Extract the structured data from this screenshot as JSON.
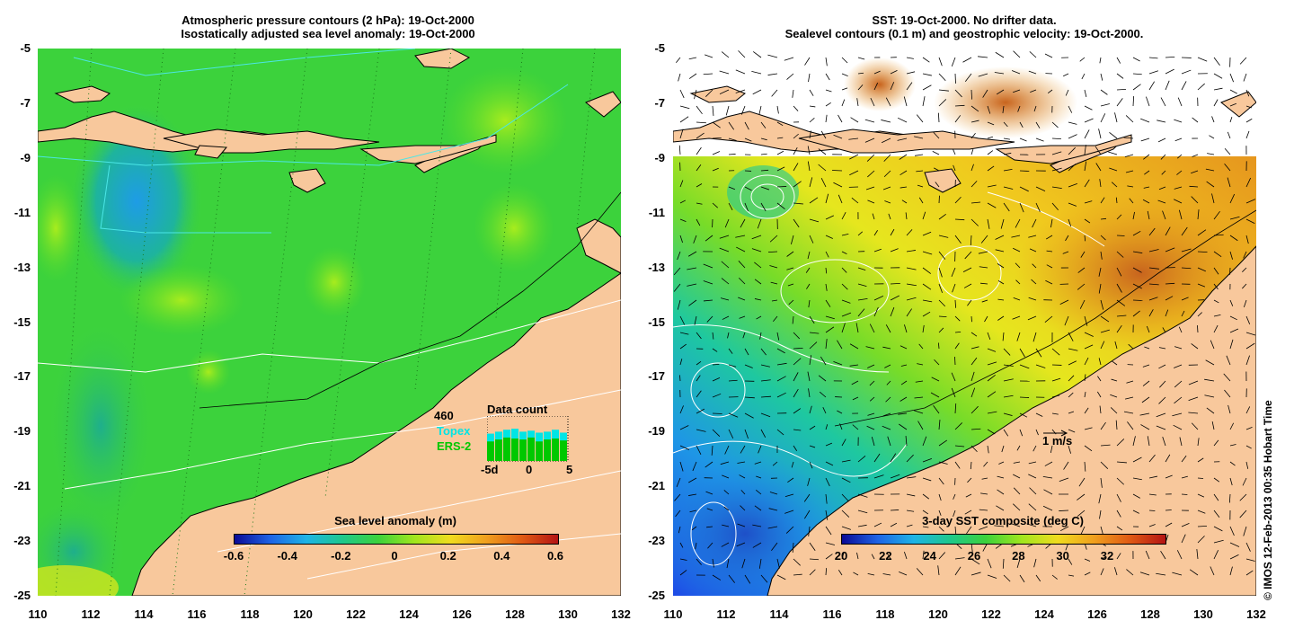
{
  "left_panel": {
    "title_line1": "Atmospheric pressure contours (2 hPa): 19-Oct-2000",
    "title_line2": "Isostatically adjusted sea level anomaly: 19-Oct-2000",
    "colorbar": {
      "title": "Sea level anomaly (m)",
      "labels": [
        "-0.6",
        "-0.4",
        "-0.2",
        "0",
        "0.2",
        "0.4",
        "0.6"
      ]
    },
    "data_count": {
      "title": "Data count",
      "max": "460",
      "topex_label": "Topex",
      "ers_label": "ERS-2",
      "axis_labels": [
        "-5d",
        "0",
        "5"
      ],
      "topex_counts": [
        280,
        300,
        320,
        330,
        300,
        310,
        290,
        300,
        320,
        290
      ],
      "ers_counts": [
        200,
        220,
        240,
        230,
        220,
        240,
        200,
        220,
        230,
        210
      ],
      "colors": {
        "topex": "#00e5e5",
        "ers": "#00c800"
      }
    }
  },
  "right_panel": {
    "title_line1": "SST: 19-Oct-2000. No drifter data.",
    "title_line2": "Sealevel contours (0.1 m) and geostrophic velocity: 19-Oct-2000.",
    "colorbar": {
      "title": "3-day SST composite (deg C)",
      "labels": [
        "20",
        "22",
        "24",
        "26",
        "28",
        "30",
        "32"
      ]
    },
    "velocity_scale_label": "1 m/s"
  },
  "axes": {
    "y_labels": [
      "-5",
      "-7",
      "-9",
      "-11",
      "-13",
      "-15",
      "-17",
      "-19",
      "-21",
      "-23",
      "-25"
    ],
    "x_labels": [
      "110",
      "112",
      "114",
      "116",
      "118",
      "120",
      "122",
      "124",
      "126",
      "128",
      "130",
      "132"
    ]
  },
  "credit": "© IMOS 12-Feb-2013 00:35 Hobart Time",
  "colors": {
    "land": "#f8c89c",
    "sla_ocean": "#3cd23c",
    "sst_warm": "#e0a020",
    "sst_cold": "#1e64e6"
  }
}
